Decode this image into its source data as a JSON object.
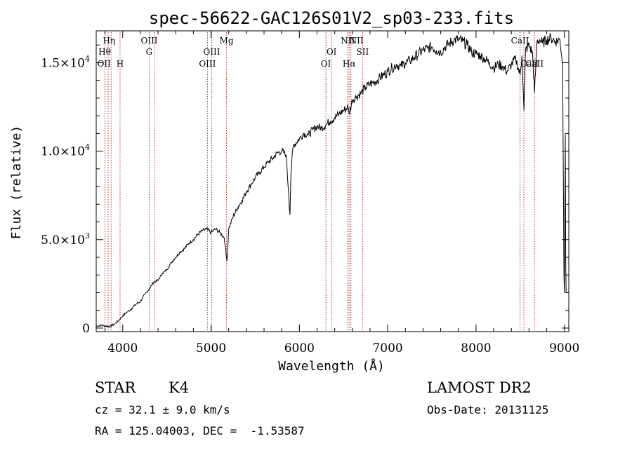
{
  "chart_data": {
    "type": "line",
    "title": "spec-56622-GAC126S01V2_sp03-233.fits",
    "xlabel": "Wavelength (Å)",
    "ylabel": "Flux (relative)",
    "xlim": [
      3700,
      9050
    ],
    "ylim": [
      -200,
      16800
    ],
    "x_ticks": [
      {
        "value": 4000,
        "label": "4000"
      },
      {
        "value": 5000,
        "label": "5000"
      },
      {
        "value": 6000,
        "label": "6000"
      },
      {
        "value": 7000,
        "label": "7000"
      },
      {
        "value": 8000,
        "label": "8000"
      },
      {
        "value": 9000,
        "label": "9000"
      }
    ],
    "y_ticks": [
      {
        "value": 0,
        "mant": "0",
        "exp": ""
      },
      {
        "value": 5000,
        "mant": "5.0×10",
        "exp": "3"
      },
      {
        "value": 10000,
        "mant": "1.0×10",
        "exp": "4"
      },
      {
        "value": 15000,
        "mant": "1.5×10",
        "exp": "4"
      }
    ],
    "grid": false,
    "series": [
      {
        "x": [
          3700,
          3750,
          3800,
          3850,
          3900,
          3950,
          4000,
          4050,
          4100,
          4150,
          4200,
          4250,
          4300,
          4350,
          4400,
          4450,
          4500,
          4550,
          4600,
          4650,
          4700,
          4750,
          4800,
          4850,
          4900,
          4950,
          5000,
          5050,
          5100,
          5150,
          5180,
          5200,
          5250,
          5300,
          5350,
          5400,
          5450,
          5500,
          5550,
          5600,
          5650,
          5700,
          5750,
          5800,
          5850,
          5880,
          5893,
          5905,
          5930,
          6000,
          6050,
          6100,
          6150,
          6200,
          6250,
          6300,
          6350,
          6400,
          6450,
          6500,
          6550,
          6563,
          6600,
          6650,
          6700,
          6750,
          6800,
          6850,
          6900,
          6950,
          7000,
          7050,
          7100,
          7150,
          7200,
          7250,
          7300,
          7350,
          7400,
          7450,
          7500,
          7550,
          7600,
          7650,
          7700,
          7750,
          7800,
          7850,
          7900,
          7950,
          8000,
          8050,
          8100,
          8150,
          8200,
          8250,
          8300,
          8350,
          8400,
          8450,
          8498,
          8520,
          8542,
          8560,
          8600,
          8640,
          8662,
          8690,
          8720,
          8750,
          8800,
          8850,
          8900,
          8950,
          8980,
          8995,
          9000,
          9005,
          9010,
          9015,
          9020
        ],
        "y": [
          100,
          150,
          120,
          100,
          200,
          400,
          700,
          900,
          1100,
          1350,
          1500,
          1900,
          2200,
          2600,
          2700,
          3100,
          3300,
          3700,
          4000,
          4300,
          4500,
          4800,
          5000,
          5300,
          5500,
          5600,
          5400,
          5600,
          5400,
          5100,
          3800,
          5600,
          6300,
          6800,
          7200,
          7700,
          8100,
          8500,
          8800,
          9100,
          9400,
          9600,
          9900,
          10000,
          9800,
          7500,
          6400,
          8800,
          10300,
          10700,
          11000,
          10900,
          11200,
          11400,
          11300,
          11500,
          11700,
          11900,
          12100,
          12300,
          12500,
          12100,
          12900,
          13100,
          13300,
          13600,
          13800,
          13900,
          14100,
          14300,
          14500,
          14700,
          14900,
          14800,
          15000,
          15100,
          15300,
          15500,
          15700,
          15800,
          15900,
          15700,
          15600,
          15900,
          16100,
          16300,
          16300,
          16200,
          16000,
          15600,
          15500,
          15400,
          15200,
          15000,
          14700,
          14900,
          14800,
          14500,
          14900,
          15200,
          14300,
          15400,
          12300,
          15700,
          16000,
          15500,
          13300,
          16200,
          16300,
          16100,
          16300,
          16400,
          16200,
          16300,
          15000,
          3000,
          2000,
          6000,
          11000,
          4000,
          2000
        ]
      }
    ],
    "line_markers": [
      {
        "x": 3798,
        "label": "Hη",
        "row": 0,
        "dx": 6
      },
      {
        "x": 3835,
        "label": "Hθ",
        "row": 1,
        "dx": -5
      },
      {
        "x": 3869,
        "label": "OII",
        "row": 2,
        "dx": -10
      },
      {
        "x": 3970,
        "label": "H",
        "row": 2,
        "dx": 0
      },
      {
        "x": 4300,
        "label": "G",
        "row": 1,
        "dx": 0
      },
      {
        "x": 4364,
        "label": "OIII",
        "row": 0,
        "dx": -8
      },
      {
        "x": 4959,
        "label": "OIII",
        "row": 2,
        "dx": 0
      },
      {
        "x": 5007,
        "label": "OIII",
        "row": 1,
        "dx": 0
      },
      {
        "x": 5175,
        "label": "Mg",
        "row": 0,
        "dx": 0
      },
      {
        "x": 6300,
        "label": "OI",
        "row": 2,
        "dx": 0
      },
      {
        "x": 6364,
        "label": "OI",
        "row": 1,
        "dx": 0
      },
      {
        "x": 6548,
        "label": "NII",
        "row": 0,
        "dx": 0
      },
      {
        "x": 6563,
        "label": "Hα",
        "row": 2,
        "dx": 0
      },
      {
        "x": 6583,
        "label": "NII",
        "row": 0,
        "dx": 8
      },
      {
        "x": 6716,
        "label": "SII",
        "row": 1,
        "dx": 0
      },
      {
        "x": 8498,
        "label": "CaII",
        "row": 0,
        "dx": 0
      },
      {
        "x": 8542,
        "label": "CaII",
        "row": 2,
        "dx": 8
      },
      {
        "x": 8662,
        "label": "CaII",
        "row": 2,
        "dx": 0
      }
    ]
  },
  "info": {
    "class_label": "STAR",
    "subclass": "K4",
    "survey": "LAMOST DR2",
    "cz": "cz = 32.1 ± 9.0 km/s",
    "obs_date": "Obs-Date: 20131125",
    "coords": "RA = 125.04003, DEC =  -1.53587"
  }
}
